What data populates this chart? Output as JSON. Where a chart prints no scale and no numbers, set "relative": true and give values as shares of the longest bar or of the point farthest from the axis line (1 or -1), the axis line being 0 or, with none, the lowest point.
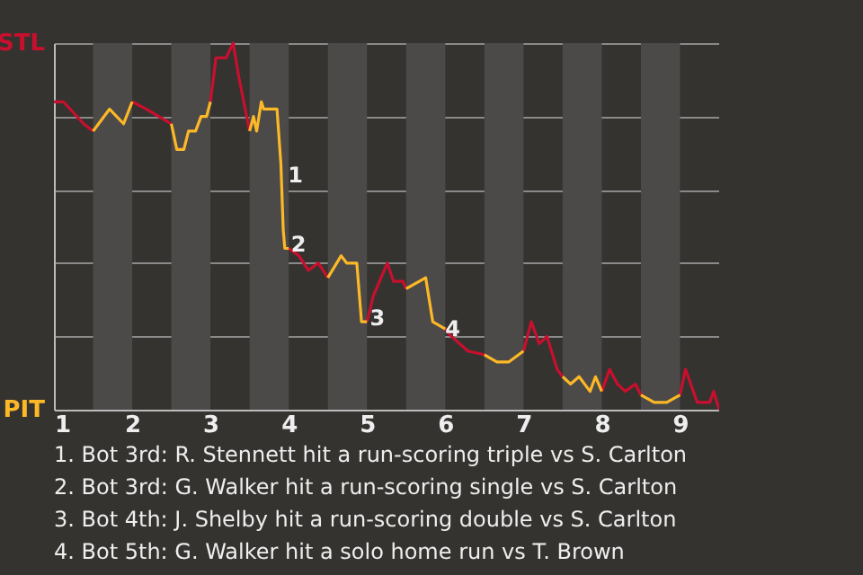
{
  "chart_data": {
    "type": "line",
    "relative": true,
    "xlim": [
      1,
      9.5
    ],
    "xticks": [
      1,
      2,
      3,
      4,
      5,
      6,
      7,
      8,
      9
    ],
    "grid": "y",
    "series": [
      {
        "name": "STL",
        "color": "#c8102e",
        "x": [
          1,
          1.12,
          1.38,
          1.5,
          null,
          2,
          2.18,
          2.5,
          null,
          3,
          3.07,
          3.2,
          3.29,
          3.36,
          3.5,
          null,
          4,
          4.13,
          4.25,
          4.38,
          4.5,
          null,
          5,
          5.08,
          5.18,
          5.26,
          5.34,
          5.46,
          5.5,
          null,
          6,
          6.08,
          6.29,
          6.5,
          null,
          7,
          7.1,
          7.2,
          7.3,
          7.43,
          7.5,
          null,
          8,
          8.1,
          8.2,
          8.3,
          8.43,
          8.5,
          null,
          9,
          9.07,
          9.22,
          9.38,
          9.43,
          9.5
        ],
        "values": [
          0.84,
          0.84,
          0.78,
          0.76,
          null,
          0.84,
          0.82,
          0.78,
          null,
          0.84,
          0.96,
          0.96,
          1,
          0.91,
          0.76,
          null,
          0.44,
          0.42,
          0.38,
          0.4,
          0.36,
          null,
          0.24,
          0.31,
          0.36,
          0.4,
          0.35,
          0.35,
          0.33,
          null,
          0.22,
          0.2,
          0.16,
          0.15,
          null,
          0.16,
          0.24,
          0.18,
          0.2,
          0.11,
          0.09,
          null,
          0.05,
          0.11,
          0.07,
          0.05,
          0.07,
          0.04,
          null,
          0.04,
          0.11,
          0.02,
          0.02,
          0.05,
          0
        ]
      },
      {
        "name": "PIT",
        "color": "#fdb827",
        "x": [
          1.5,
          1.71,
          1.89,
          2,
          null,
          2.5,
          2.57,
          2.66,
          2.72,
          2.81,
          2.88,
          2.95,
          3,
          null,
          3.5,
          3.55,
          3.59,
          3.65,
          3.68,
          3.85,
          3.9,
          3.93,
          3.95,
          4,
          null,
          4.5,
          4.67,
          4.74,
          4.87,
          4.93,
          5,
          null,
          5.5,
          5.75,
          5.84,
          6,
          null,
          6.5,
          6.66,
          6.81,
          7,
          null,
          7.5,
          7.6,
          7.71,
          7.85,
          7.92,
          8,
          null,
          8.5,
          8.67,
          8.83,
          9
        ],
        "values": [
          0.76,
          0.82,
          0.78,
          0.84,
          null,
          0.78,
          0.71,
          0.71,
          0.76,
          0.76,
          0.8,
          0.8,
          0.84,
          null,
          0.76,
          0.8,
          0.76,
          0.84,
          0.82,
          0.82,
          0.67,
          0.49,
          0.44,
          0.44,
          null,
          0.36,
          0.42,
          0.4,
          0.4,
          0.24,
          0.24,
          null,
          0.33,
          0.36,
          0.24,
          0.22,
          null,
          0.15,
          0.13,
          0.13,
          0.16,
          null,
          0.09,
          0.07,
          0.09,
          0.05,
          0.09,
          0.05,
          null,
          0.04,
          0.02,
          0.02,
          0.04
        ]
      }
    ],
    "bands": [
      {
        "axis": "x",
        "from": 1.5,
        "to": 2,
        "color": "#4b4a48"
      },
      {
        "axis": "x",
        "from": 2.5,
        "to": 3,
        "color": "#4b4a48"
      },
      {
        "axis": "x",
        "from": 3.5,
        "to": 4,
        "color": "#4b4a48"
      },
      {
        "axis": "x",
        "from": 4.5,
        "to": 5,
        "color": "#4b4a48"
      },
      {
        "axis": "x",
        "from": 5.5,
        "to": 6,
        "color": "#4b4a48"
      },
      {
        "axis": "x",
        "from": 6.5,
        "to": 7,
        "color": "#4b4a48"
      },
      {
        "axis": "x",
        "from": 7.5,
        "to": 8,
        "color": "#4b4a48"
      },
      {
        "axis": "x",
        "from": 8.5,
        "to": 9,
        "color": "#4b4a48"
      }
    ],
    "annotations": [
      {
        "text": "1",
        "x": 3.92,
        "y": 0.64
      },
      {
        "text": "2",
        "x": 3.96,
        "y": 0.45
      },
      {
        "text": "3",
        "x": 4.97,
        "y": 0.25
      },
      {
        "text": "4",
        "x": 5.93,
        "y": 0.22
      },
      "1. Bot 3rd: R. Stennett hit a run-scoring triple vs S. Carlton",
      "2. Bot 3rd: G. Walker hit a run-scoring single vs S. Carlton",
      "3. Bot 4th: J. Shelby hit a run-scoring double vs S. Carlton",
      "4. Bot 5th: G. Walker hit a solo home run vs T. Brown"
    ]
  }
}
